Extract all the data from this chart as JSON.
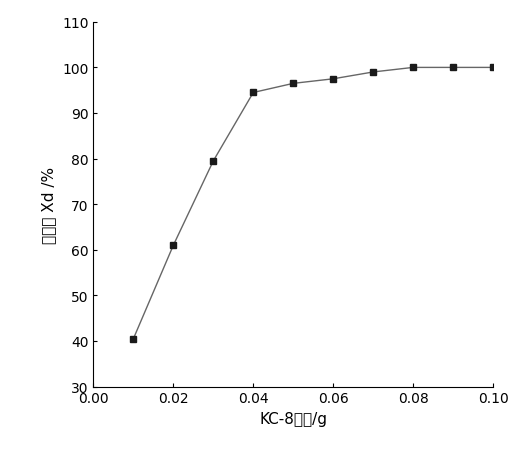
{
  "x": [
    0.01,
    0.02,
    0.03,
    0.04,
    0.05,
    0.06,
    0.07,
    0.08,
    0.09,
    0.1
  ],
  "y": [
    40.5,
    61.0,
    79.5,
    94.5,
    96.5,
    97.5,
    99.0,
    100.0,
    100.0,
    100.0
  ],
  "xlabel": "KC-8质量/g",
  "ylabel": "脱除率 Xd /%",
  "xlim": [
    0.0,
    0.1
  ],
  "ylim": [
    30,
    110
  ],
  "xticks": [
    0.0,
    0.02,
    0.04,
    0.06,
    0.08,
    0.1
  ],
  "yticks": [
    30,
    40,
    50,
    60,
    70,
    80,
    90,
    100,
    110
  ],
  "line_color": "#666666",
  "marker": "s",
  "marker_color": "#1a1a1a",
  "marker_size": 5,
  "linewidth": 1.0,
  "background_color": "#ffffff",
  "label_fontsize": 11,
  "tick_fontsize": 10
}
